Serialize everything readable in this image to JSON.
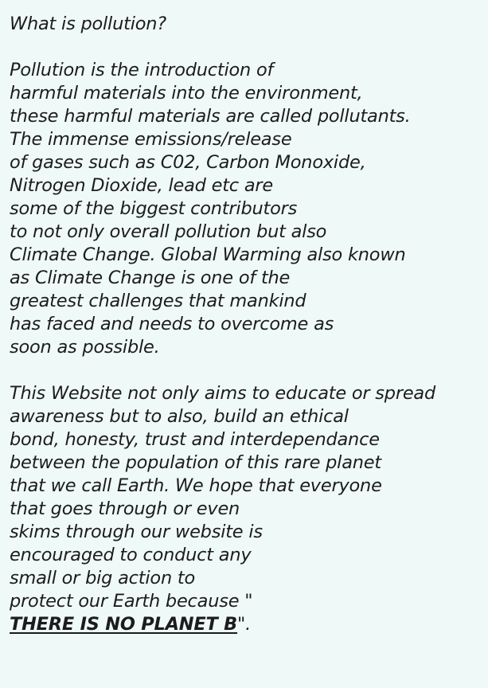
{
  "heading": "What is pollution?",
  "paragraph1": [
    "Pollution is the introduction of",
    "harmful materials into the environment,",
    "these harmful materials are called pollutants.",
    "The immense emissions/release",
    "of gases such as C02, Carbon Monoxide,",
    "Nitrogen Dioxide, lead etc are",
    "some of the biggest contributors",
    "to not only overall pollution but also",
    "Climate Change. Global Warming also known",
    "as Climate Change is one of the",
    "greatest challenges that mankind",
    "has faced and needs to overcome as",
    "soon as possible."
  ],
  "paragraph2": [
    "This Website not only aims to educate or spread",
    "awareness but to also, build an ethical",
    "bond, honesty, trust and interdependance",
    "between the population of this rare planet",
    "that we call Earth. We hope that everyone",
    "that goes through or even",
    "skims through our website is",
    "encouraged to conduct any",
    "small or big action to",
    "protect our Earth because \""
  ],
  "slogan": "THERE IS NO PLANET B",
  "slogan_suffix": "\"."
}
